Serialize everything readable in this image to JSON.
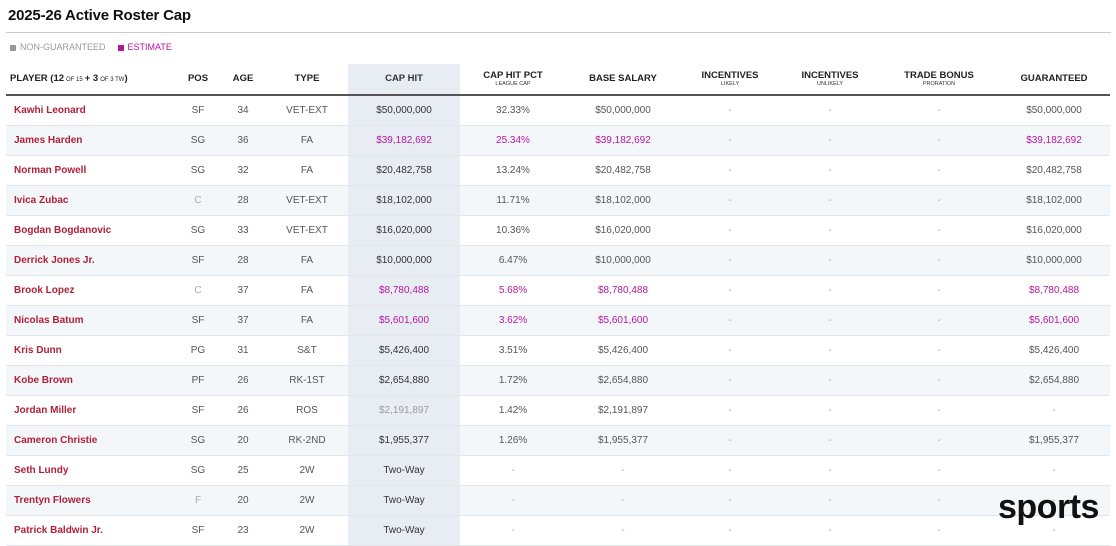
{
  "header": {
    "title": "2025-26 Active Roster Cap"
  },
  "legend": [
    {
      "label": "NON-GUARANTEED",
      "color": "#9a9a9a"
    },
    {
      "label": "ESTIMATE",
      "color": "#b5179e"
    }
  ],
  "table": {
    "player_header": [
      "PLAYER (",
      "12",
      "OF 15",
      "+ 3",
      "OF 3 TW",
      ")"
    ],
    "columns": [
      {
        "label": "POS"
      },
      {
        "label": "AGE"
      },
      {
        "label": "TYPE"
      },
      {
        "label": "CAP HIT"
      },
      {
        "label": "CAP HIT PCT",
        "sub": "LEAGUE CAP"
      },
      {
        "label": "BASE SALARY"
      },
      {
        "label": "INCENTIVES",
        "sub": "LIKELY"
      },
      {
        "label": "INCENTIVES",
        "sub": "UNLIKELY"
      },
      {
        "label": "TRADE BONUS",
        "sub": "PRORATION"
      },
      {
        "label": "GUARANTEED"
      }
    ],
    "rows": [
      {
        "cells": [
          "Kawhi Leonard",
          "SF",
          "34",
          "VET-EXT",
          "$50,000,000",
          "32.33%",
          "$50,000,000",
          "-",
          "-",
          "-",
          "$50,000,000"
        ]
      },
      {
        "cells": [
          "James Harden",
          "SG",
          "36",
          "FA",
          "$39,182,692",
          "25.34%",
          "$39,182,692",
          "-",
          "-",
          "-",
          "$39,182,692"
        ],
        "estimate": true
      },
      {
        "cells": [
          "Norman Powell",
          "SG",
          "32",
          "FA",
          "$20,482,758",
          "13.24%",
          "$20,482,758",
          "-",
          "-",
          "-",
          "$20,482,758"
        ]
      },
      {
        "cells": [
          "Ivica Zubac",
          "C",
          "28",
          "VET-EXT",
          "$18,102,000",
          "11.71%",
          "$18,102,000",
          "-",
          "-",
          "-",
          "$18,102,000"
        ]
      },
      {
        "cells": [
          "Bogdan Bogdanovic",
          "SG",
          "33",
          "VET-EXT",
          "$16,020,000",
          "10.36%",
          "$16,020,000",
          "-",
          "-",
          "-",
          "$16,020,000"
        ]
      },
      {
        "cells": [
          "Derrick Jones Jr.",
          "SF",
          "28",
          "FA",
          "$10,000,000",
          "6.47%",
          "$10,000,000",
          "-",
          "-",
          "-",
          "$10,000,000"
        ]
      },
      {
        "cells": [
          "Brook Lopez",
          "C",
          "37",
          "FA",
          "$8,780,488",
          "5.68%",
          "$8,780,488",
          "-",
          "-",
          "-",
          "$8,780,488"
        ],
        "estimate": true
      },
      {
        "cells": [
          "Nicolas Batum",
          "SF",
          "37",
          "FA",
          "$5,601,600",
          "3.62%",
          "$5,601,600",
          "-",
          "-",
          "-",
          "$5,601,600"
        ],
        "estimate": true
      },
      {
        "cells": [
          "Kris Dunn",
          "PG",
          "31",
          "S&T",
          "$5,426,400",
          "3.51%",
          "$5,426,400",
          "-",
          "-",
          "-",
          "$5,426,400"
        ]
      },
      {
        "cells": [
          "Kobe Brown",
          "PF",
          "26",
          "RK-1ST",
          "$2,654,880",
          "1.72%",
          "$2,654,880",
          "-",
          "-",
          "-",
          "$2,654,880"
        ]
      },
      {
        "cells": [
          "Jordan Miller",
          "SF",
          "26",
          "ROS",
          "$2,191,897",
          "1.42%",
          "$2,191,897",
          "-",
          "-",
          "-",
          "-"
        ],
        "non_guaranteed": true
      },
      {
        "cells": [
          "Cameron Christie",
          "SG",
          "20",
          "RK-2ND",
          "$1,955,377",
          "1.26%",
          "$1,955,377",
          "-",
          "-",
          "-",
          "$1,955,377"
        ]
      },
      {
        "cells": [
          "Seth Lundy",
          "SG",
          "25",
          "2W",
          "Two-Way",
          "-",
          "-",
          "-",
          "-",
          "-",
          "-"
        ]
      },
      {
        "cells": [
          "Trentyn Flowers",
          "F",
          "20",
          "2W",
          "Two-Way",
          "-",
          "-",
          "-",
          "-",
          "-",
          "-"
        ]
      },
      {
        "cells": [
          "Patrick Baldwin Jr.",
          "SF",
          "23",
          "2W",
          "Two-Way",
          "-",
          "-",
          "-",
          "-",
          "-",
          "-"
        ]
      }
    ]
  },
  "watermark": "sports"
}
